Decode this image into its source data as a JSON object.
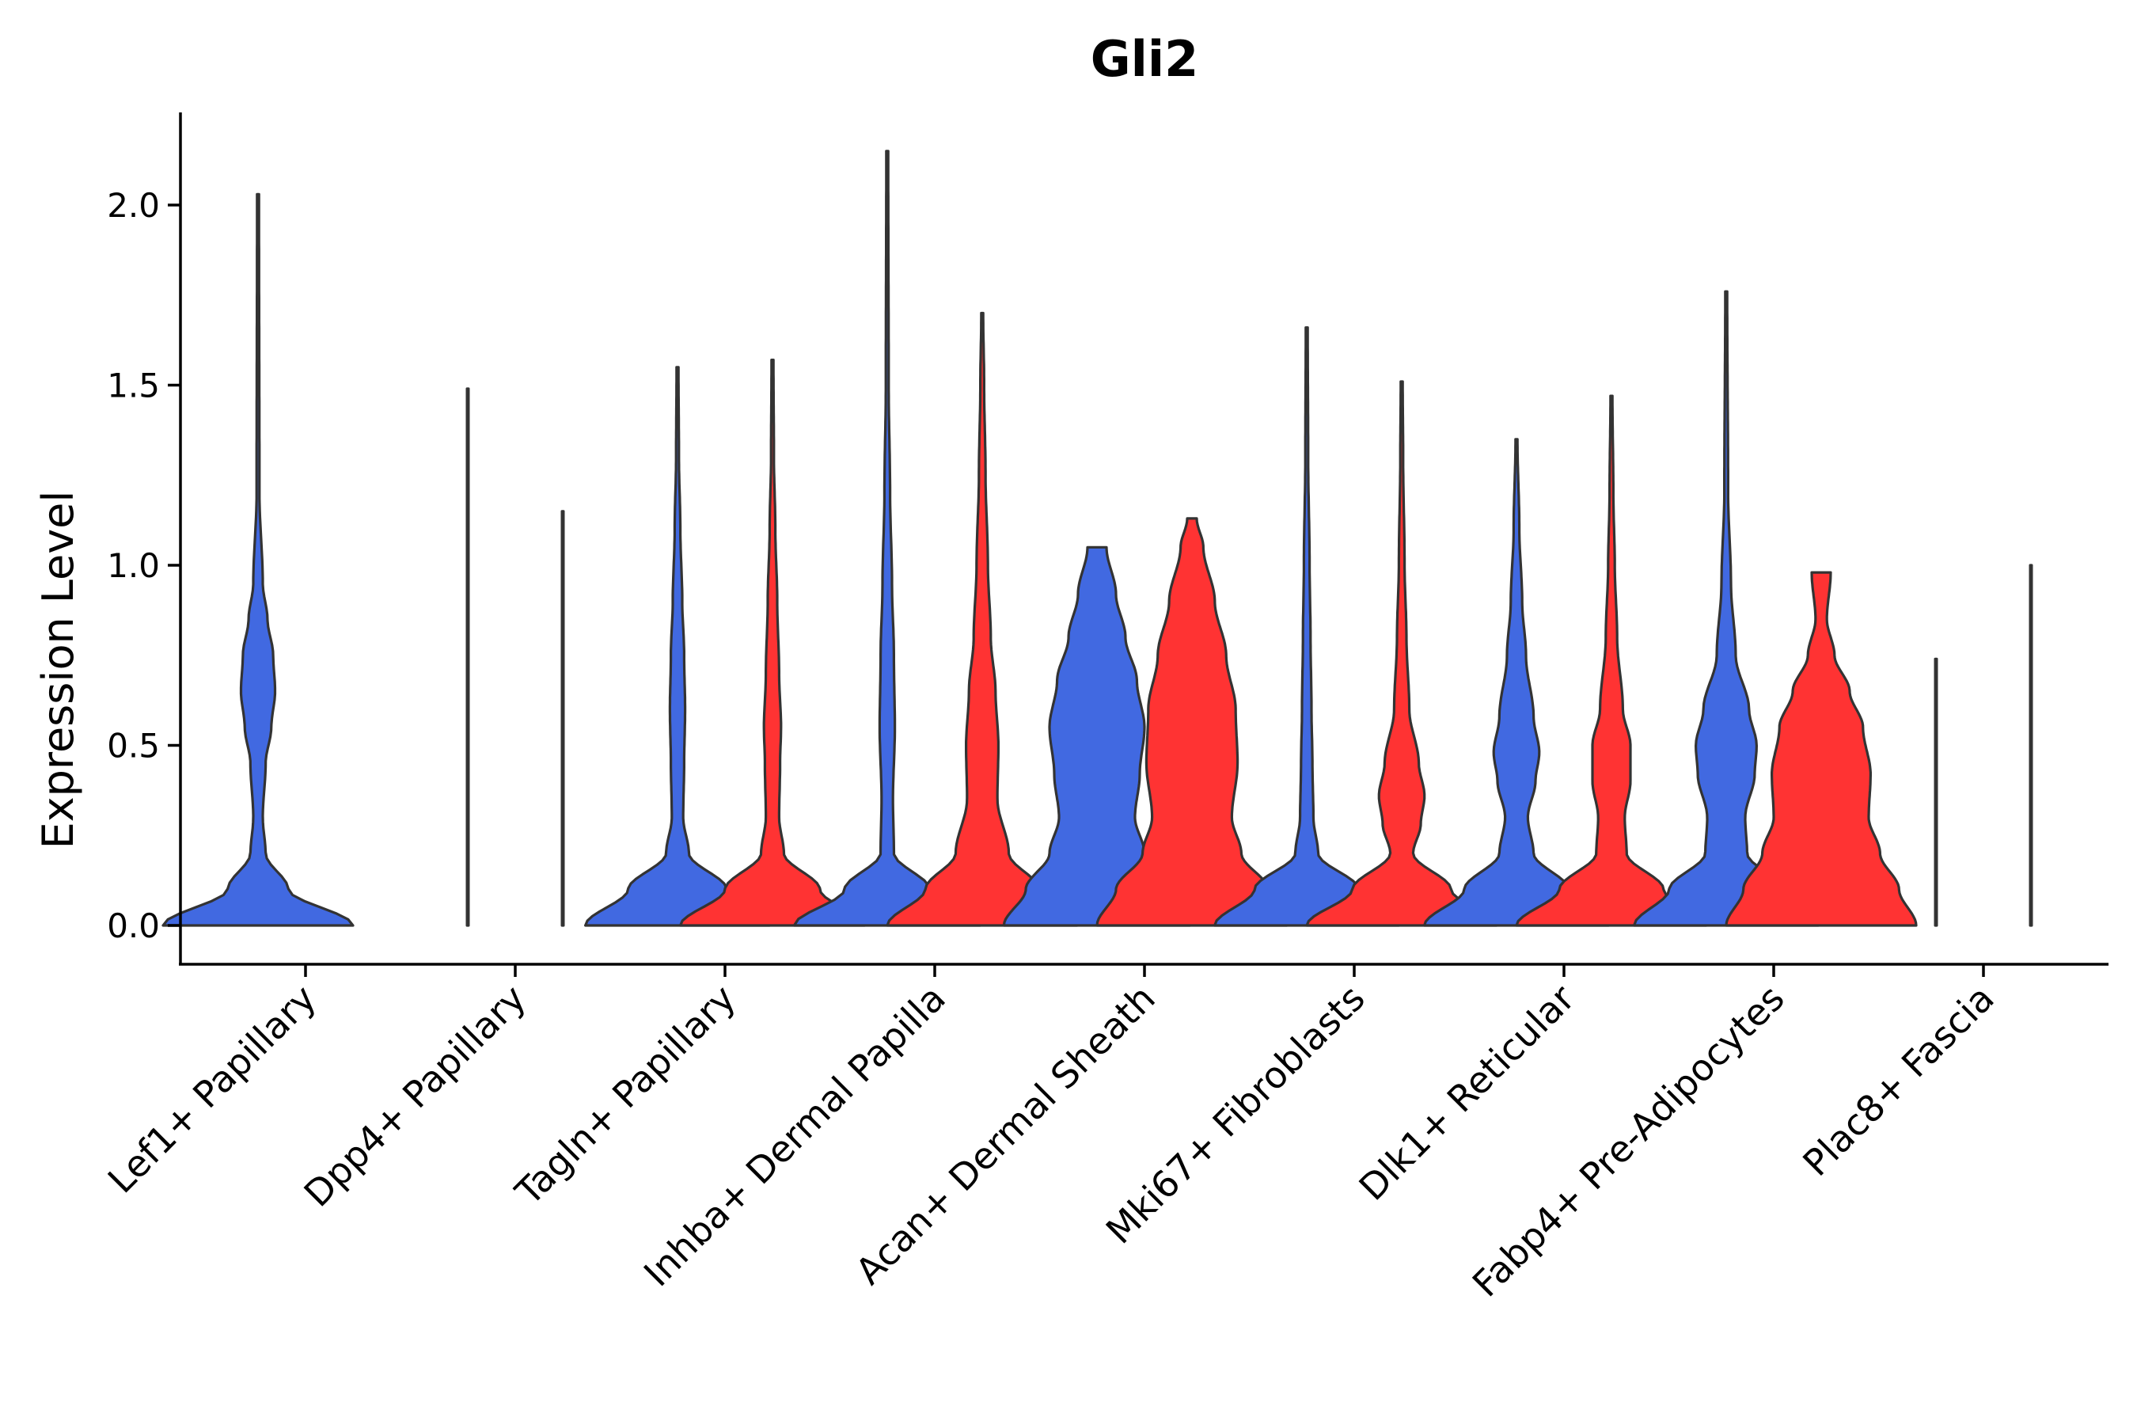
{
  "chart_data": {
    "type": "violin",
    "title": "Gli2",
    "xlabel": "",
    "ylabel": "Expression Level",
    "ylim": [
      -0.11,
      2.26
    ],
    "yticks": [
      0.0,
      0.5,
      1.0,
      1.5,
      2.0
    ],
    "ytick_labels": [
      "0.0",
      "0.5",
      "1.0",
      "1.5",
      "2.0"
    ],
    "grid": false,
    "legend": "none",
    "colors": {
      "group1": "#4169E1",
      "group2": "#FF3333",
      "outline": "#333333"
    },
    "categories": [
      "Lef1+ Papillary",
      "Dpp4+ Papillary",
      "Tagln+ Papillary",
      "Inhba+ Dermal Papilla",
      "Acan+ Dermal Sheath",
      "Mki67+ Fibroblasts",
      "Dlk1+ Reticular",
      "Fabp4+ Pre-Adipocytes",
      "Plac8+ Fascia"
    ],
    "violins": [
      {
        "category": "Lef1+ Papillary",
        "group": 1,
        "max": 2.03,
        "profile": [
          [
            0,
            1.0
          ],
          [
            0.1,
            0.32
          ],
          [
            0.2,
            0.08
          ],
          [
            0.3,
            0.05
          ],
          [
            0.45,
            0.08
          ],
          [
            0.55,
            0.14
          ],
          [
            0.65,
            0.18
          ],
          [
            0.75,
            0.16
          ],
          [
            0.85,
            0.1
          ],
          [
            0.95,
            0.05
          ],
          [
            1.2,
            0.015
          ],
          [
            2.03,
            0.01
          ]
        ]
      },
      {
        "category": "Dpp4+ Papillary",
        "group": 1,
        "max": 1.49,
        "profile": [
          [
            0,
            0.0
          ],
          [
            0.01,
            0.0
          ]
        ]
      },
      {
        "category": "Dpp4+ Papillary",
        "group": 2,
        "max": 1.15,
        "profile": [
          [
            0,
            0.0
          ],
          [
            0.01,
            0.0
          ]
        ]
      },
      {
        "category": "Tagln+ Papillary",
        "group": 1,
        "max": 1.55,
        "profile": [
          [
            0,
            0.97
          ],
          [
            0.1,
            0.52
          ],
          [
            0.2,
            0.12
          ],
          [
            0.3,
            0.06
          ],
          [
            0.45,
            0.07
          ],
          [
            0.6,
            0.08
          ],
          [
            0.75,
            0.07
          ],
          [
            0.9,
            0.05
          ],
          [
            1.1,
            0.03
          ],
          [
            1.3,
            0.015
          ],
          [
            1.55,
            0.01
          ]
        ]
      },
      {
        "category": "Tagln+ Papillary",
        "group": 2,
        "max": 1.57,
        "profile": [
          [
            0,
            0.97
          ],
          [
            0.1,
            0.5
          ],
          [
            0.2,
            0.12
          ],
          [
            0.3,
            0.07
          ],
          [
            0.45,
            0.08
          ],
          [
            0.55,
            0.09
          ],
          [
            0.7,
            0.07
          ],
          [
            0.9,
            0.05
          ],
          [
            1.1,
            0.03
          ],
          [
            1.3,
            0.015
          ],
          [
            1.57,
            0.01
          ]
        ]
      },
      {
        "category": "Inhba+ Dermal Papilla",
        "group": 1,
        "max": 2.15,
        "profile": [
          [
            0,
            0.98
          ],
          [
            0.1,
            0.45
          ],
          [
            0.2,
            0.07
          ],
          [
            0.35,
            0.06
          ],
          [
            0.55,
            0.08
          ],
          [
            0.75,
            0.07
          ],
          [
            0.95,
            0.05
          ],
          [
            1.2,
            0.03
          ],
          [
            1.5,
            0.015
          ],
          [
            2.15,
            0.01
          ]
        ]
      },
      {
        "category": "Inhba+ Dermal Papilla",
        "group": 2,
        "max": 1.7,
        "profile": [
          [
            0,
            1.0
          ],
          [
            0.1,
            0.6
          ],
          [
            0.2,
            0.28
          ],
          [
            0.35,
            0.16
          ],
          [
            0.5,
            0.17
          ],
          [
            0.65,
            0.14
          ],
          [
            0.8,
            0.09
          ],
          [
            1.0,
            0.06
          ],
          [
            1.25,
            0.035
          ],
          [
            1.5,
            0.02
          ],
          [
            1.7,
            0.01
          ]
        ]
      },
      {
        "category": "Acan+ Dermal Sheath",
        "group": 1,
        "max": 1.05,
        "profile": [
          [
            0,
            0.98
          ],
          [
            0.1,
            0.75
          ],
          [
            0.2,
            0.5
          ],
          [
            0.3,
            0.4
          ],
          [
            0.42,
            0.45
          ],
          [
            0.55,
            0.5
          ],
          [
            0.68,
            0.42
          ],
          [
            0.8,
            0.3
          ],
          [
            0.92,
            0.2
          ],
          [
            1.05,
            0.1
          ]
        ]
      },
      {
        "category": "Acan+ Dermal Sheath",
        "group": 2,
        "max": 1.13,
        "profile": [
          [
            0,
            1.0
          ],
          [
            0.1,
            0.8
          ],
          [
            0.2,
            0.52
          ],
          [
            0.3,
            0.42
          ],
          [
            0.45,
            0.48
          ],
          [
            0.6,
            0.46
          ],
          [
            0.75,
            0.36
          ],
          [
            0.9,
            0.24
          ],
          [
            1.05,
            0.12
          ],
          [
            1.13,
            0.05
          ]
        ]
      },
      {
        "category": "Mki67+ Fibroblasts",
        "group": 1,
        "max": 1.66,
        "profile": [
          [
            0,
            0.97
          ],
          [
            0.1,
            0.55
          ],
          [
            0.2,
            0.12
          ],
          [
            0.3,
            0.07
          ],
          [
            0.45,
            0.06
          ],
          [
            0.6,
            0.05
          ],
          [
            0.8,
            0.04
          ],
          [
            1.0,
            0.03
          ],
          [
            1.3,
            0.015
          ],
          [
            1.66,
            0.01
          ]
        ]
      },
      {
        "category": "Mki67+ Fibroblasts",
        "group": 2,
        "max": 1.51,
        "profile": [
          [
            0,
            1.0
          ],
          [
            0.1,
            0.52
          ],
          [
            0.2,
            0.12
          ],
          [
            0.28,
            0.2
          ],
          [
            0.36,
            0.24
          ],
          [
            0.45,
            0.18
          ],
          [
            0.6,
            0.08
          ],
          [
            0.8,
            0.05
          ],
          [
            1.0,
            0.03
          ],
          [
            1.3,
            0.015
          ],
          [
            1.51,
            0.01
          ]
        ]
      },
      {
        "category": "Dlk1+ Reticular",
        "group": 1,
        "max": 1.35,
        "profile": [
          [
            0,
            0.97
          ],
          [
            0.1,
            0.55
          ],
          [
            0.2,
            0.18
          ],
          [
            0.3,
            0.12
          ],
          [
            0.4,
            0.2
          ],
          [
            0.48,
            0.24
          ],
          [
            0.58,
            0.18
          ],
          [
            0.75,
            0.1
          ],
          [
            0.9,
            0.06
          ],
          [
            1.1,
            0.03
          ],
          [
            1.35,
            0.01
          ]
        ]
      },
      {
        "category": "Dlk1+ Reticular",
        "group": 2,
        "max": 1.47,
        "profile": [
          [
            0,
            1.0
          ],
          [
            0.1,
            0.55
          ],
          [
            0.2,
            0.16
          ],
          [
            0.3,
            0.14
          ],
          [
            0.4,
            0.2
          ],
          [
            0.5,
            0.2
          ],
          [
            0.6,
            0.12
          ],
          [
            0.8,
            0.06
          ],
          [
            1.0,
            0.035
          ],
          [
            1.2,
            0.02
          ],
          [
            1.47,
            0.01
          ]
        ]
      },
      {
        "category": "Fabp4+ Pre-Adipocytes",
        "group": 1,
        "max": 1.76,
        "profile": [
          [
            0,
            0.97
          ],
          [
            0.1,
            0.6
          ],
          [
            0.2,
            0.22
          ],
          [
            0.3,
            0.2
          ],
          [
            0.42,
            0.3
          ],
          [
            0.5,
            0.32
          ],
          [
            0.6,
            0.24
          ],
          [
            0.75,
            0.1
          ],
          [
            0.95,
            0.05
          ],
          [
            1.2,
            0.02
          ],
          [
            1.76,
            0.01
          ]
        ]
      },
      {
        "category": "Fabp4+ Pre-Adipocytes",
        "group": 2,
        "max": 0.98,
        "profile": [
          [
            0,
            1.0
          ],
          [
            0.1,
            0.82
          ],
          [
            0.2,
            0.62
          ],
          [
            0.3,
            0.5
          ],
          [
            0.42,
            0.52
          ],
          [
            0.55,
            0.44
          ],
          [
            0.65,
            0.3
          ],
          [
            0.75,
            0.14
          ],
          [
            0.85,
            0.06
          ],
          [
            0.98,
            0.1
          ]
        ]
      },
      {
        "category": "Plac8+ Fascia",
        "group": 1,
        "max": 0.74,
        "profile": [
          [
            0,
            0.0
          ],
          [
            0.01,
            0.0
          ]
        ]
      },
      {
        "category": "Plac8+ Fascia",
        "group": 2,
        "max": 1.0,
        "profile": [
          [
            0,
            0.0
          ],
          [
            0.01,
            0.0
          ]
        ]
      }
    ]
  }
}
